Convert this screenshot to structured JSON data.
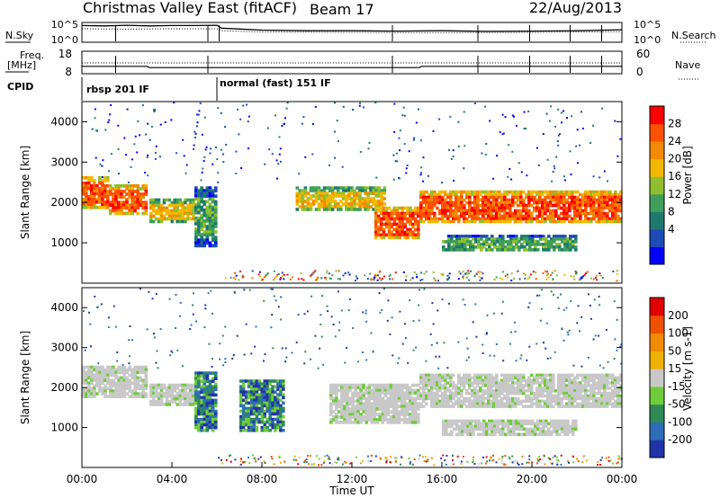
{
  "header": {
    "title": "Christmas Valley East (fitACF)",
    "beam": "Beam 17",
    "date": "22/Aug/2013"
  },
  "labels": {
    "nsky": "N.Sky",
    "nsearch": "N.Search",
    "freq_line1": "Freq.",
    "freq_line2": "[MHz]",
    "nave": "Nave",
    "cpid": "CPID",
    "cpid_segments": [
      "rbsp 201 IF",
      "normal (fast) 151 IF"
    ]
  },
  "chart_data": [
    {
      "type": "line",
      "name": "noise-panel",
      "left_axis_ticks": [
        "10^5",
        "10^0"
      ],
      "right_axis_ticks": [
        "10^5",
        "10^0"
      ],
      "series": [
        {
          "name": "N.Sky",
          "style": "solid",
          "x": [
            0,
            1,
            2,
            3,
            4,
            5,
            6,
            6.2,
            8,
            10,
            12,
            14,
            16,
            18,
            20,
            22,
            24
          ],
          "y": [
            4.6,
            4.5,
            4.7,
            4.5,
            4.6,
            4.6,
            4.7,
            3.8,
            3.2,
            3.0,
            3.0,
            2.9,
            3.0,
            2.8,
            2.9,
            3.0,
            3.3
          ]
        },
        {
          "name": "N.Search",
          "style": "dotted",
          "x": [
            0,
            2,
            4,
            6,
            6.2,
            8,
            12,
            16,
            20,
            24
          ],
          "y": [
            3.6,
            3.5,
            3.6,
            3.6,
            3.0,
            2.6,
            2.5,
            2.4,
            2.5,
            2.7
          ]
        }
      ]
    },
    {
      "type": "line",
      "name": "frequency-nave-panel",
      "left_axis_ticks": [
        "18",
        "8"
      ],
      "left_axis_ticks_values": [
        18,
        8
      ],
      "right_axis_ticks": [
        "60",
        "0"
      ],
      "right_axis_ticks_values": [
        60,
        0
      ],
      "series": [
        {
          "name": "Freq.",
          "style": "solid",
          "x": [
            0,
            2.9,
            3.0,
            15.0,
            15.1,
            24
          ],
          "y": [
            11.1,
            11.1,
            10.4,
            10.4,
            11.1,
            11.1
          ]
        },
        {
          "name": "Nave",
          "style": "dotted",
          "x": [
            0,
            24
          ],
          "y": [
            30,
            30
          ]
        }
      ]
    },
    {
      "type": "heatmap",
      "name": "power-panel",
      "ylabel": "Slant Range [km]",
      "xlim": [
        0,
        24
      ],
      "ylim": [
        0,
        4500
      ],
      "yticks": [
        1000,
        2000,
        3000,
        4000
      ],
      "colorbar": {
        "label": "Power [dB]",
        "ticks": [
          "28",
          "24",
          "20",
          "16",
          "12",
          "8",
          "4"
        ],
        "colors": [
          "#0000ff",
          "#1d4cb8",
          "#1e7a6e",
          "#3f9e5a",
          "#8fbf2f",
          "#f2b800",
          "#f28a00",
          "#ff5000",
          "#ff0000"
        ]
      },
      "echo_bands": [
        {
          "x": [
            0.0,
            1.2
          ],
          "y": [
            1850,
            2650
          ],
          "level": "high"
        },
        {
          "x": [
            1.2,
            2.9
          ],
          "y": [
            1700,
            2450
          ],
          "level": "high"
        },
        {
          "x": [
            3.0,
            5.0
          ],
          "y": [
            1500,
            2100
          ],
          "level": "mid"
        },
        {
          "x": [
            5.0,
            6.0
          ],
          "y": [
            900,
            2400
          ],
          "level": "low"
        },
        {
          "x": [
            9.5,
            13.5
          ],
          "y": [
            1800,
            2400
          ],
          "level": "mid"
        },
        {
          "x": [
            13.0,
            15.0
          ],
          "y": [
            1100,
            1900
          ],
          "level": "high"
        },
        {
          "x": [
            15.0,
            24.0
          ],
          "y": [
            1500,
            2300
          ],
          "level": "high"
        },
        {
          "x": [
            16.0,
            22.0
          ],
          "y": [
            800,
            1200
          ],
          "level": "low"
        }
      ]
    },
    {
      "type": "heatmap",
      "name": "velocity-panel",
      "ylabel": "Slant Range [km]",
      "xlabel": "Time UT",
      "xlim": [
        0,
        24
      ],
      "ylim": [
        0,
        4500
      ],
      "yticks": [
        1000,
        2000,
        3000,
        4000
      ],
      "xticks": [
        "00:00",
        "04:00",
        "08:00",
        "12:00",
        "16:00",
        "20:00",
        "00:00"
      ],
      "colorbar": {
        "label": "Velocity [m s-1]",
        "ticks": [
          "200",
          "100",
          "50",
          "15",
          "-15",
          "-50",
          "-100",
          "-200"
        ],
        "colors": [
          "#2233aa",
          "#2e6eb8",
          "#2f8a55",
          "#6fcc3a",
          "#c8c8c8",
          "#f0b000",
          "#f08a00",
          "#f05000",
          "#e00000"
        ]
      },
      "echo_bands": [
        {
          "x": [
            0.0,
            2.9
          ],
          "y": [
            1750,
            2550
          ],
          "value": "ground"
        },
        {
          "x": [
            3.0,
            5.0
          ],
          "y": [
            1550,
            2100
          ],
          "value": "ground"
        },
        {
          "x": [
            5.0,
            6.0
          ],
          "y": [
            900,
            2400
          ],
          "value": "positive"
        },
        {
          "x": [
            7.0,
            9.0
          ],
          "y": [
            900,
            2200
          ],
          "value": "positive"
        },
        {
          "x": [
            11.0,
            15.0
          ],
          "y": [
            1100,
            2100
          ],
          "value": "ground"
        },
        {
          "x": [
            15.0,
            24.0
          ],
          "y": [
            1500,
            2350
          ],
          "value": "ground"
        },
        {
          "x": [
            16.0,
            22.0
          ],
          "y": [
            800,
            1200
          ],
          "value": "ground"
        }
      ]
    }
  ]
}
